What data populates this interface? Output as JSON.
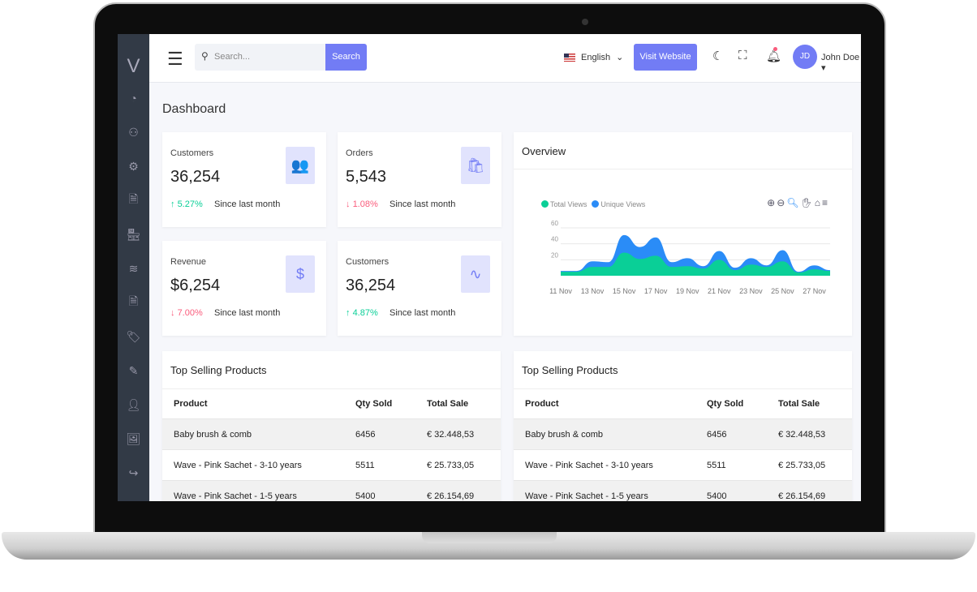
{
  "sidebar": {
    "logo": "V",
    "icons": [
      "dashboard-icon",
      "apps-icon",
      "settings-icon",
      "document-icon",
      "store-icon",
      "layers-icon",
      "file-icon",
      "tag-icon",
      "edit-icon",
      "user-icon",
      "image-icon",
      "share-icon"
    ]
  },
  "header": {
    "search_placeholder": "Search...",
    "search_button": "Search",
    "language": "English",
    "visit_website": "Visit Website",
    "avatar_initials": "JD",
    "user_name": "John Doe"
  },
  "page": {
    "title": "Dashboard"
  },
  "stats": [
    {
      "label": "Customers",
      "value": "36,254",
      "change": "5.27%",
      "direction": "up",
      "since": "Since last month",
      "icon": "users-icon",
      "glyph": "👥"
    },
    {
      "label": "Orders",
      "value": "5,543",
      "change": "1.08%",
      "direction": "down",
      "since": "Since last month",
      "icon": "shopping-bag-icon",
      "glyph": "🛍"
    },
    {
      "label": "Revenue",
      "value": "$6,254",
      "change": "7.00%",
      "direction": "down",
      "since": "Since last month",
      "icon": "dollar-icon",
      "glyph": "$"
    },
    {
      "label": "Customers",
      "value": "36,254",
      "change": "4.87%",
      "direction": "up",
      "since": "Since last month",
      "icon": "activity-icon",
      "glyph": "∿"
    }
  ],
  "overview": {
    "title": "Overview"
  },
  "chart_data": {
    "type": "area",
    "x": [
      "11 Nov",
      "12 Nov",
      "13 Nov",
      "14 Nov",
      "15 Nov",
      "16 Nov",
      "17 Nov",
      "18 Nov",
      "19 Nov",
      "20 Nov",
      "21 Nov",
      "22 Nov",
      "23 Nov",
      "24 Nov",
      "25 Nov",
      "26 Nov",
      "27 Nov",
      "28 Nov"
    ],
    "xtick_labels": [
      "11 Nov",
      "13 Nov",
      "15 Nov",
      "17 Nov",
      "19 Nov",
      "21 Nov",
      "23 Nov",
      "25 Nov",
      "27 Nov"
    ],
    "yticks": [
      20,
      40,
      60
    ],
    "ylim": [
      0,
      60
    ],
    "grid": true,
    "legend": "top-left",
    "series": [
      {
        "name": "Unique Views",
        "color": "#2a8cf7",
        "values": [
          6,
          6,
          18,
          17,
          51,
          36,
          48,
          17,
          22,
          12,
          31,
          10,
          22,
          13,
          32,
          5,
          13,
          7
        ]
      },
      {
        "name": "Total Views",
        "color": "#0acf97",
        "values": [
          5,
          5,
          11,
          11,
          29,
          21,
          25,
          11,
          12,
          9,
          20,
          7,
          14,
          11,
          18,
          4,
          8,
          6
        ]
      }
    ]
  },
  "tables": [
    {
      "title": "Top Selling Products",
      "columns": [
        "Product",
        "Qty Sold",
        "Total Sale"
      ],
      "rows": [
        [
          "Baby brush & comb",
          "6456",
          "€ 32.448,53"
        ],
        [
          "Wave - Pink Sachet - 3-10 years",
          "5511",
          "€ 25.733,05"
        ],
        [
          "Wave - Pink Sachet - 1-5 years",
          "5400",
          "€ 26.154,69"
        ]
      ]
    },
    {
      "title": "Top Selling Products",
      "columns": [
        "Product",
        "Qty Sold",
        "Total Sale"
      ],
      "rows": [
        [
          "Baby brush & comb",
          "6456",
          "€ 32.448,53"
        ],
        [
          "Wave - Pink Sachet - 3-10 years",
          "5511",
          "€ 25.733,05"
        ],
        [
          "Wave - Pink Sachet - 1-5 years",
          "5400",
          "€ 26.154,69"
        ]
      ]
    }
  ],
  "colors": {
    "accent": "#727cf5",
    "up": "#0acf97",
    "down": "#fa5c7c",
    "sidebar": "#323a46"
  }
}
